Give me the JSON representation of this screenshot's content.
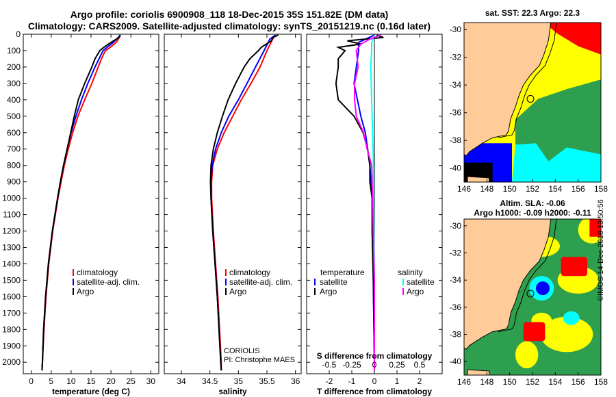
{
  "title_line1": "Argo profile: coriolis 6900908_118 18-Dec-2015 35S 151.82E (DM data)",
  "title_line2": "Climatology: CARS2009. Satellite-adjusted climatology: synTS_20151219.nc (0.16d later)",
  "stamp": "©IMOS 14-Dec-2018 13:50:56",
  "colors": {
    "climatology": "#ff0000",
    "satellite": "#0000ff",
    "argo": "#000000",
    "sat_salinity": "#00ffff",
    "argo_salinity": "#ff00ff"
  },
  "chart_data": [
    {
      "type": "line",
      "name": "temperature-profile",
      "xlabel": "temperature (deg C)",
      "xlim": [
        -2,
        32
      ],
      "ylim": [
        2070,
        0
      ],
      "xticks": [
        "0",
        "5",
        "10",
        "15",
        "20",
        "25",
        "30"
      ],
      "yticks": [
        "0",
        "100",
        "200",
        "300",
        "400",
        "500",
        "600",
        "700",
        "800",
        "900",
        "1000",
        "1100",
        "1200",
        "1300",
        "1400",
        "1500",
        "1600",
        "1700",
        "1800",
        "1900",
        "2000"
      ],
      "legend": [
        "climatology",
        "satellite-adj. clim.",
        "Argo"
      ],
      "series": [
        {
          "name": "climatology",
          "depth": [
            5,
            20,
            50,
            80,
            100,
            150,
            200,
            300,
            400,
            500,
            600,
            700,
            800,
            900,
            1000,
            1200,
            1400,
            1600,
            1800,
            2000,
            2050
          ],
          "values": [
            22.3,
            22.1,
            21.3,
            19.8,
            18.6,
            17.6,
            16.8,
            15.2,
            13.4,
            11.7,
            10.4,
            9.3,
            8.3,
            7.5,
            6.7,
            5.4,
            4.4,
            3.7,
            3.2,
            2.8,
            2.7
          ]
        },
        {
          "name": "satellite-adj. clim.",
          "depth": [
            5,
            20,
            50,
            80,
            100,
            150,
            200,
            300,
            400,
            500,
            600,
            700,
            800,
            900,
            1000,
            1200,
            1400,
            1600,
            1800,
            2000,
            2050
          ],
          "values": [
            22.3,
            21.8,
            20.6,
            19.0,
            18.0,
            17.0,
            16.0,
            14.2,
            12.6,
            11.2,
            10.0,
            9.0,
            8.1,
            7.3,
            6.6,
            5.3,
            4.3,
            3.6,
            3.1,
            2.8,
            2.7
          ]
        },
        {
          "name": "Argo",
          "depth": [
            5,
            20,
            50,
            80,
            100,
            150,
            200,
            300,
            400,
            500,
            600,
            700,
            800,
            900,
            1000,
            1200,
            1400,
            1600,
            1800,
            2000,
            2050
          ],
          "values": [
            22.4,
            22.0,
            20.0,
            18.2,
            17.2,
            16.0,
            15.2,
            13.4,
            11.8,
            10.8,
            9.9,
            9.0,
            8.1,
            7.3,
            6.6,
            5.3,
            4.3,
            3.6,
            3.1,
            2.8,
            2.7
          ]
        }
      ]
    },
    {
      "type": "line",
      "name": "salinity-profile",
      "xlabel": "salinity",
      "xlim": [
        33.7,
        36.1
      ],
      "ylim": [
        2070,
        0
      ],
      "xticks": [
        "34",
        "34.5",
        "35",
        "35.5",
        "36"
      ],
      "legend": [
        "climatology",
        "satellite-adj. clim.",
        "Argo"
      ],
      "annotation": [
        "CORIOLIS",
        "PI: Christophe MAES"
      ],
      "series": [
        {
          "name": "climatology",
          "depth": [
            5,
            30,
            100,
            200,
            300,
            400,
            500,
            600,
            700,
            800,
            900,
            1000,
            1200,
            1400,
            1600,
            1800,
            2000,
            2050
          ],
          "values": [
            35.65,
            35.6,
            35.5,
            35.38,
            35.22,
            35.05,
            34.9,
            34.75,
            34.63,
            34.55,
            34.53,
            34.53,
            34.56,
            34.6,
            34.64,
            34.67,
            34.7,
            34.7
          ]
        },
        {
          "name": "satellite-adj. clim.",
          "depth": [
            5,
            30,
            100,
            200,
            300,
            400,
            500,
            600,
            700,
            800,
            900,
            1000,
            1200,
            1400,
            1600,
            1800,
            2000,
            2050
          ],
          "values": [
            35.65,
            35.55,
            35.45,
            35.3,
            35.15,
            35.0,
            34.83,
            34.7,
            34.6,
            34.54,
            34.52,
            34.52,
            34.55,
            34.59,
            34.63,
            34.66,
            34.69,
            34.7
          ]
        },
        {
          "name": "Argo",
          "depth": [
            5,
            20,
            40,
            80,
            100,
            150,
            200,
            300,
            400,
            500,
            600,
            700,
            800,
            900,
            1000,
            1200,
            1400,
            1600,
            1800,
            2000,
            2050
          ],
          "values": [
            35.7,
            35.6,
            35.58,
            35.4,
            35.35,
            35.2,
            35.1,
            34.95,
            34.82,
            34.72,
            34.63,
            34.56,
            34.52,
            34.51,
            34.52,
            34.55,
            34.59,
            34.63,
            34.66,
            34.69,
            34.7
          ]
        }
      ]
    },
    {
      "type": "line",
      "name": "difference-profile",
      "xlabel": "T difference from climatology",
      "x2label": "S difference from climatology",
      "xlim": [
        -3,
        3
      ],
      "ylim": [
        2070,
        0
      ],
      "xticks": [
        "-2",
        "-1",
        "0",
        "1",
        "2"
      ],
      "x2ticks": [
        "-0.5",
        "-0.25",
        "0",
        "0.25",
        "0.5"
      ],
      "legend": {
        "temperature": [
          "satellite",
          "Argo"
        ],
        "salinity": [
          "satellite",
          "Argo"
        ]
      },
      "series": [
        {
          "name": "temperature satellite",
          "depth": [
            5,
            50,
            100,
            200,
            300,
            500,
            600,
            800,
            1000,
            1500,
            2000,
            2050
          ],
          "values": [
            0.0,
            -0.7,
            -0.7,
            -0.8,
            -0.9,
            -0.6,
            -0.4,
            -0.2,
            -0.1,
            -0.05,
            0.0,
            0.0
          ]
        },
        {
          "name": "temperature Argo",
          "depth": [
            5,
            20,
            40,
            60,
            80,
            100,
            150,
            200,
            300,
            400,
            500,
            600,
            700,
            800,
            900,
            1000,
            1200,
            1500,
            2000,
            2050
          ],
          "values": [
            0.1,
            0.4,
            -1.2,
            -0.6,
            -1.6,
            -1.3,
            -1.6,
            -1.6,
            -1.7,
            -1.6,
            -0.9,
            -0.5,
            -0.3,
            -0.2,
            -0.2,
            -0.1,
            -0.1,
            -0.05,
            0.0,
            0.0
          ]
        },
        {
          "name": "salinity satellite",
          "depth": [
            5,
            50,
            100,
            200,
            400,
            600,
            800,
            1000,
            1500,
            2000,
            2050
          ],
          "values": [
            0.0,
            -0.03,
            -0.03,
            -0.04,
            -0.03,
            -0.02,
            -0.01,
            -0.01,
            0.0,
            0.0,
            0.0
          ]
        },
        {
          "name": "salinity Argo",
          "depth": [
            5,
            30,
            60,
            100,
            200,
            300,
            400,
            500,
            600,
            700,
            800,
            1000,
            1500,
            2000,
            2050
          ],
          "values": [
            0.07,
            -0.05,
            -0.15,
            -0.2,
            -0.18,
            -0.22,
            -0.22,
            -0.2,
            -0.12,
            -0.08,
            -0.03,
            -0.02,
            0.0,
            0.0,
            0.0
          ]
        }
      ]
    },
    {
      "type": "heatmap",
      "name": "sst-map",
      "title": "sat. SST: 22.3 Argo: 22.3",
      "xlim": [
        146,
        158
      ],
      "ylim": [
        -41,
        -29.5
      ],
      "xticks": [
        "146",
        "148",
        "150",
        "152",
        "154",
        "156",
        "158"
      ],
      "yticks": [
        "-30",
        "-32",
        "-34",
        "-36",
        "-38",
        "-40"
      ],
      "marker": {
        "lon": 151.82,
        "lat": -35
      }
    },
    {
      "type": "heatmap",
      "name": "sla-map",
      "title": "Altim. SLA: -0.06",
      "subtitle": "Argo h1000: -0.09 h2000: -0.11",
      "xlim": [
        146,
        158
      ],
      "ylim": [
        -41,
        -29.5
      ],
      "xticks": [
        "146",
        "148",
        "150",
        "152",
        "154",
        "156",
        "158"
      ],
      "yticks": [
        "-30",
        "-32",
        "-34",
        "-36",
        "-38",
        "-40"
      ],
      "marker": {
        "lon": 151.82,
        "lat": -35
      }
    }
  ]
}
